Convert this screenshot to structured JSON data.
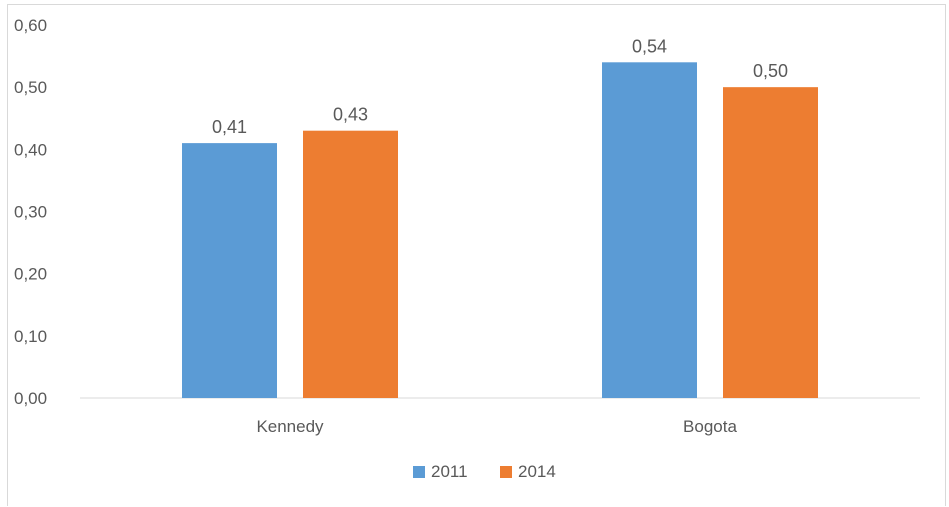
{
  "chart_data": {
    "type": "bar",
    "categories": [
      "Kennedy",
      "Bogota"
    ],
    "series": [
      {
        "name": "2011",
        "values": [
          0.41,
          0.54
        ],
        "labels": [
          "0,41",
          "0,54"
        ],
        "color": "#5b9bd5"
      },
      {
        "name": "2014",
        "values": [
          0.43,
          0.5
        ],
        "labels": [
          "0,43",
          "0,50"
        ],
        "color": "#ed7d31"
      }
    ],
    "yticks": [
      "0,00",
      "0,10",
      "0,20",
      "0,30",
      "0,40",
      "0,50",
      "0,60"
    ],
    "ylim": [
      0,
      0.6
    ],
    "grid": false,
    "legend_position": "bottom",
    "axis_color": "#d9d9d9",
    "text_color": "#595959"
  }
}
